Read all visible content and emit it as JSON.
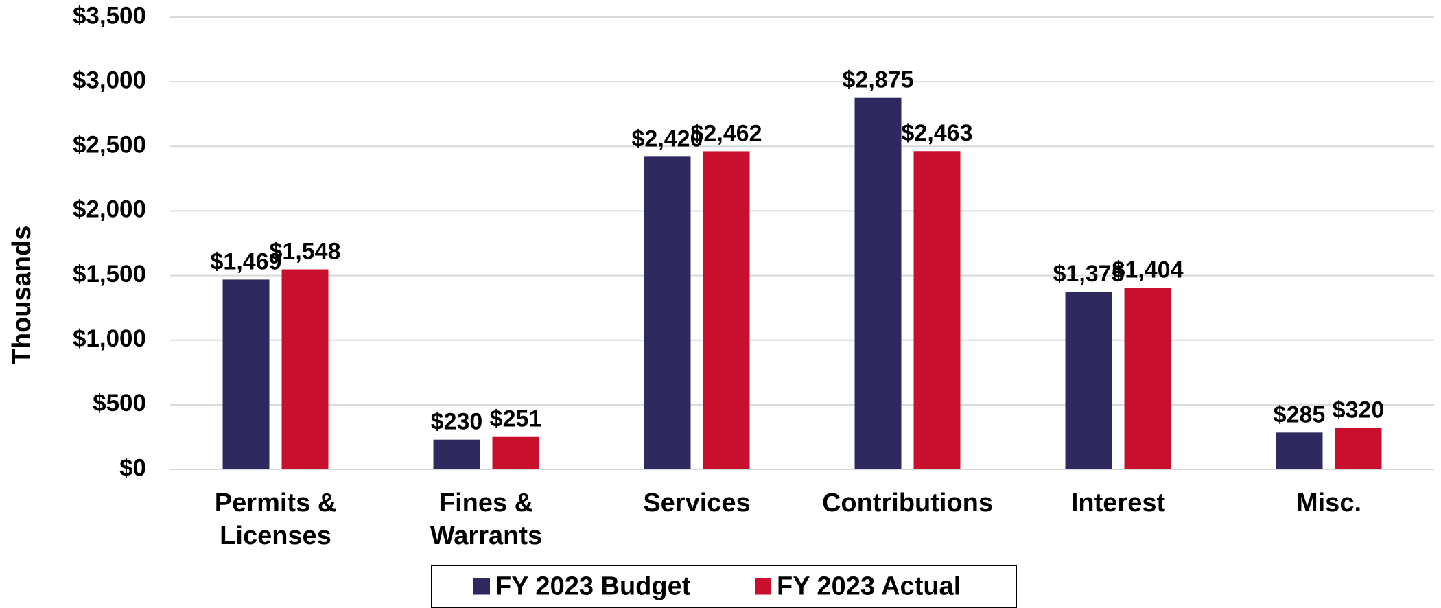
{
  "chart_data": {
    "type": "bar",
    "y_axis_label": "Thousands",
    "categories": [
      "Permits &\nLicenses",
      "Fines &\nWarrants",
      "Services",
      "Contributions",
      "Interest",
      "Misc."
    ],
    "series": [
      {
        "name": "FY 2023 Budget",
        "color": "#2e2a5f",
        "values": [
          1469,
          230,
          2420,
          2875,
          1375,
          285
        ],
        "value_labels": [
          "$1,469",
          "$230",
          "$2,420",
          "$2,875",
          "$1,375",
          "$285"
        ]
      },
      {
        "name": "FY 2023 Actual",
        "color": "#c8102e",
        "values": [
          1548,
          251,
          2462,
          2463,
          1404,
          320
        ],
        "value_labels": [
          "$1,548",
          "$251",
          "$2,462",
          "$2,463",
          "$1,404",
          "$320"
        ]
      }
    ],
    "ylim": [
      0,
      3500
    ],
    "yticks": [
      {
        "value": 0,
        "label": "$0"
      },
      {
        "value": 500,
        "label": "$500"
      },
      {
        "value": 1000,
        "label": "$1,000"
      },
      {
        "value": 1500,
        "label": "$1,500"
      },
      {
        "value": 2000,
        "label": "$2,000"
      },
      {
        "value": 2500,
        "label": "$2,500"
      },
      {
        "value": 3000,
        "label": "$3,000"
      },
      {
        "value": 3500,
        "label": "$3,500"
      }
    ],
    "grid": true,
    "legend": "bottom"
  }
}
